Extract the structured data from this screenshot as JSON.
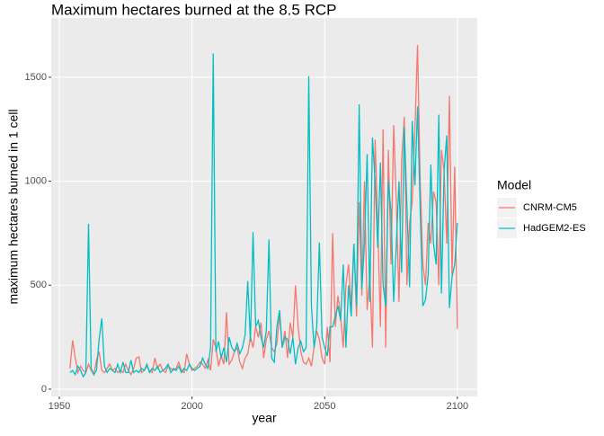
{
  "chart_data": {
    "type": "line",
    "title": "Maximum hectares burned at the 8.5 RCP",
    "x_label": "year",
    "y_label": "maximum hectares burned in 1 cell",
    "legend_title": "Model",
    "legend_position": "right",
    "grid": true,
    "xlim": [
      1946.95,
      2107.5
    ],
    "ylim": [
      -35,
      1785
    ],
    "xticks": [
      1950,
      2000,
      2050,
      2100
    ],
    "yticks": [
      0,
      500,
      1000,
      1500
    ],
    "x": [
      1954,
      1955,
      1956,
      1957,
      1958,
      1959,
      1960,
      1961,
      1962,
      1963,
      1964,
      1965,
      1966,
      1967,
      1968,
      1969,
      1970,
      1971,
      1972,
      1973,
      1974,
      1975,
      1976,
      1977,
      1978,
      1979,
      1980,
      1981,
      1982,
      1983,
      1984,
      1985,
      1986,
      1987,
      1988,
      1989,
      1990,
      1991,
      1992,
      1993,
      1994,
      1995,
      1996,
      1997,
      1998,
      1999,
      2000,
      2001,
      2002,
      2003,
      2004,
      2005,
      2006,
      2007,
      2008,
      2009,
      2010,
      2011,
      2012,
      2013,
      2014,
      2015,
      2016,
      2017,
      2018,
      2019,
      2020,
      2021,
      2022,
      2023,
      2024,
      2025,
      2026,
      2027,
      2028,
      2029,
      2030,
      2031,
      2032,
      2033,
      2034,
      2035,
      2036,
      2037,
      2038,
      2039,
      2040,
      2041,
      2042,
      2043,
      2044,
      2045,
      2046,
      2047,
      2048,
      2049,
      2050,
      2051,
      2052,
      2053,
      2054,
      2055,
      2056,
      2057,
      2058,
      2059,
      2060,
      2061,
      2062,
      2063,
      2064,
      2065,
      2066,
      2067,
      2068,
      2069,
      2070,
      2071,
      2072,
      2073,
      2074,
      2075,
      2076,
      2077,
      2078,
      2079,
      2080,
      2081,
      2082,
      2083,
      2084,
      2085,
      2086,
      2087,
      2088,
      2089,
      2090,
      2091,
      2092,
      2093,
      2094,
      2095,
      2096,
      2097,
      2098,
      2099,
      2100
    ],
    "series": [
      {
        "name": "CNRM-CM5",
        "color": "#F8766D",
        "values": [
          100,
          235,
          150,
          80,
          110,
          90,
          80,
          120,
          90,
          70,
          140,
          180,
          90,
          80,
          100,
          120,
          90,
          100,
          80,
          90,
          80,
          120,
          90,
          70,
          100,
          150,
          155,
          80,
          90,
          110,
          90,
          80,
          150,
          100,
          120,
          90,
          80,
          110,
          100,
          90,
          100,
          130,
          90,
          80,
          170,
          120,
          90,
          100,
          110,
          130,
          120,
          100,
          140,
          90,
          240,
          200,
          110,
          160,
          120,
          370,
          120,
          140,
          180,
          200,
          130,
          100,
          150,
          170,
          250,
          200,
          300,
          250,
          320,
          150,
          240,
          280,
          200,
          180,
          220,
          360,
          200,
          280,
          150,
          320,
          250,
          500,
          300,
          180,
          130,
          120,
          150,
          110,
          200,
          280,
          240,
          150,
          120,
          300,
          130,
          750,
          300,
          450,
          350,
          200,
          500,
          600,
          400,
          700,
          350,
          900,
          450,
          1000,
          380,
          550,
          200,
          1200,
          800,
          300,
          1250,
          200,
          1150,
          600,
          1270,
          900,
          420,
          1100,
          1310,
          500,
          800,
          900,
          1250,
          1655,
          1000,
          600,
          500,
          800,
          700,
          950,
          900,
          500,
          1150,
          1050,
          700,
          1410,
          550,
          1070,
          290
        ]
      },
      {
        "name": "HadGEM2-ES",
        "color": "#00BFC4",
        "values": [
          80,
          90,
          70,
          110,
          90,
          60,
          80,
          795,
          100,
          70,
          90,
          240,
          340,
          110,
          80,
          100,
          90,
          80,
          120,
          80,
          130,
          80,
          80,
          140,
          80,
          90,
          80,
          100,
          90,
          120,
          80,
          100,
          90,
          110,
          80,
          90,
          100,
          120,
          80,
          100,
          90,
          110,
          80,
          100,
          90,
          120,
          100,
          90,
          100,
          110,
          150,
          120,
          100,
          200,
          1615,
          180,
          230,
          150,
          200,
          130,
          250,
          200,
          180,
          220,
          170,
          200,
          260,
          520,
          230,
          755,
          300,
          330,
          250,
          200,
          280,
          720,
          150,
          130,
          300,
          380,
          200,
          250,
          240,
          170,
          250,
          120,
          200,
          230,
          180,
          200,
          1505,
          400,
          200,
          300,
          705,
          250,
          200,
          160,
          300,
          300,
          350,
          400,
          330,
          600,
          200,
          500,
          350,
          700,
          400,
          1370,
          480,
          700,
          1130,
          420,
          1210,
          1000,
          680,
          1090,
          500,
          400,
          1000,
          850,
          420,
          700,
          1000,
          560,
          1260,
          880,
          490,
          1290,
          980,
          1360,
          860,
          400,
          430,
          550,
          1080,
          700,
          600,
          1320,
          460,
          1050,
          1220,
          390,
          540,
          600,
          800
        ]
      }
    ]
  }
}
